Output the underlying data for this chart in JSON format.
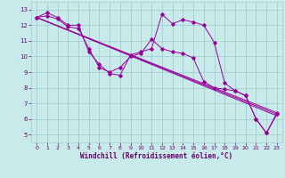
{
  "title": "",
  "xlabel": "Windchill (Refroidissement éolien,°C)",
  "ylabel": "",
  "background_color": "#c8eaea",
  "grid_color": "#a0d0d0",
  "line_color": "#990099",
  "ylim": [
    4.5,
    13.5
  ],
  "xlim": [
    -0.5,
    23.5
  ],
  "yticks": [
    5,
    6,
    7,
    8,
    9,
    10,
    11,
    12,
    13
  ],
  "xticks": [
    0,
    1,
    2,
    3,
    4,
    5,
    6,
    7,
    8,
    9,
    10,
    11,
    12,
    13,
    14,
    15,
    16,
    17,
    18,
    19,
    20,
    21,
    22,
    23
  ],
  "series1_x": [
    0,
    1,
    2,
    3,
    4,
    5,
    6,
    7,
    8,
    9,
    10,
    11,
    12,
    13,
    14,
    15,
    16,
    17,
    18,
    19,
    20,
    21,
    22,
    23
  ],
  "series1_y": [
    12.5,
    12.8,
    12.5,
    12.0,
    12.0,
    10.3,
    9.5,
    8.9,
    8.8,
    10.1,
    10.3,
    10.5,
    12.7,
    12.1,
    12.35,
    12.2,
    12.0,
    10.9,
    8.3,
    7.8,
    7.5,
    6.0,
    5.1,
    6.4
  ],
  "series2_x": [
    0,
    1,
    2,
    3,
    4,
    5,
    6,
    7,
    8,
    9,
    10,
    11,
    12,
    13,
    14,
    15,
    16,
    17,
    18,
    19,
    20,
    21,
    22,
    23
  ],
  "series2_y": [
    12.5,
    12.6,
    12.4,
    11.9,
    11.8,
    10.5,
    9.3,
    9.0,
    9.3,
    10.0,
    10.2,
    11.1,
    10.5,
    10.3,
    10.2,
    9.9,
    8.4,
    8.0,
    7.9,
    7.8,
    7.5,
    6.0,
    5.1,
    6.3
  ],
  "series3_x": [
    0,
    23
  ],
  "series3_y": [
    12.5,
    6.4
  ],
  "series4_x": [
    0,
    23
  ],
  "series4_y": [
    12.5,
    6.3
  ],
  "series5_x": [
    0,
    23
  ],
  "series5_y": [
    12.5,
    6.2
  ]
}
